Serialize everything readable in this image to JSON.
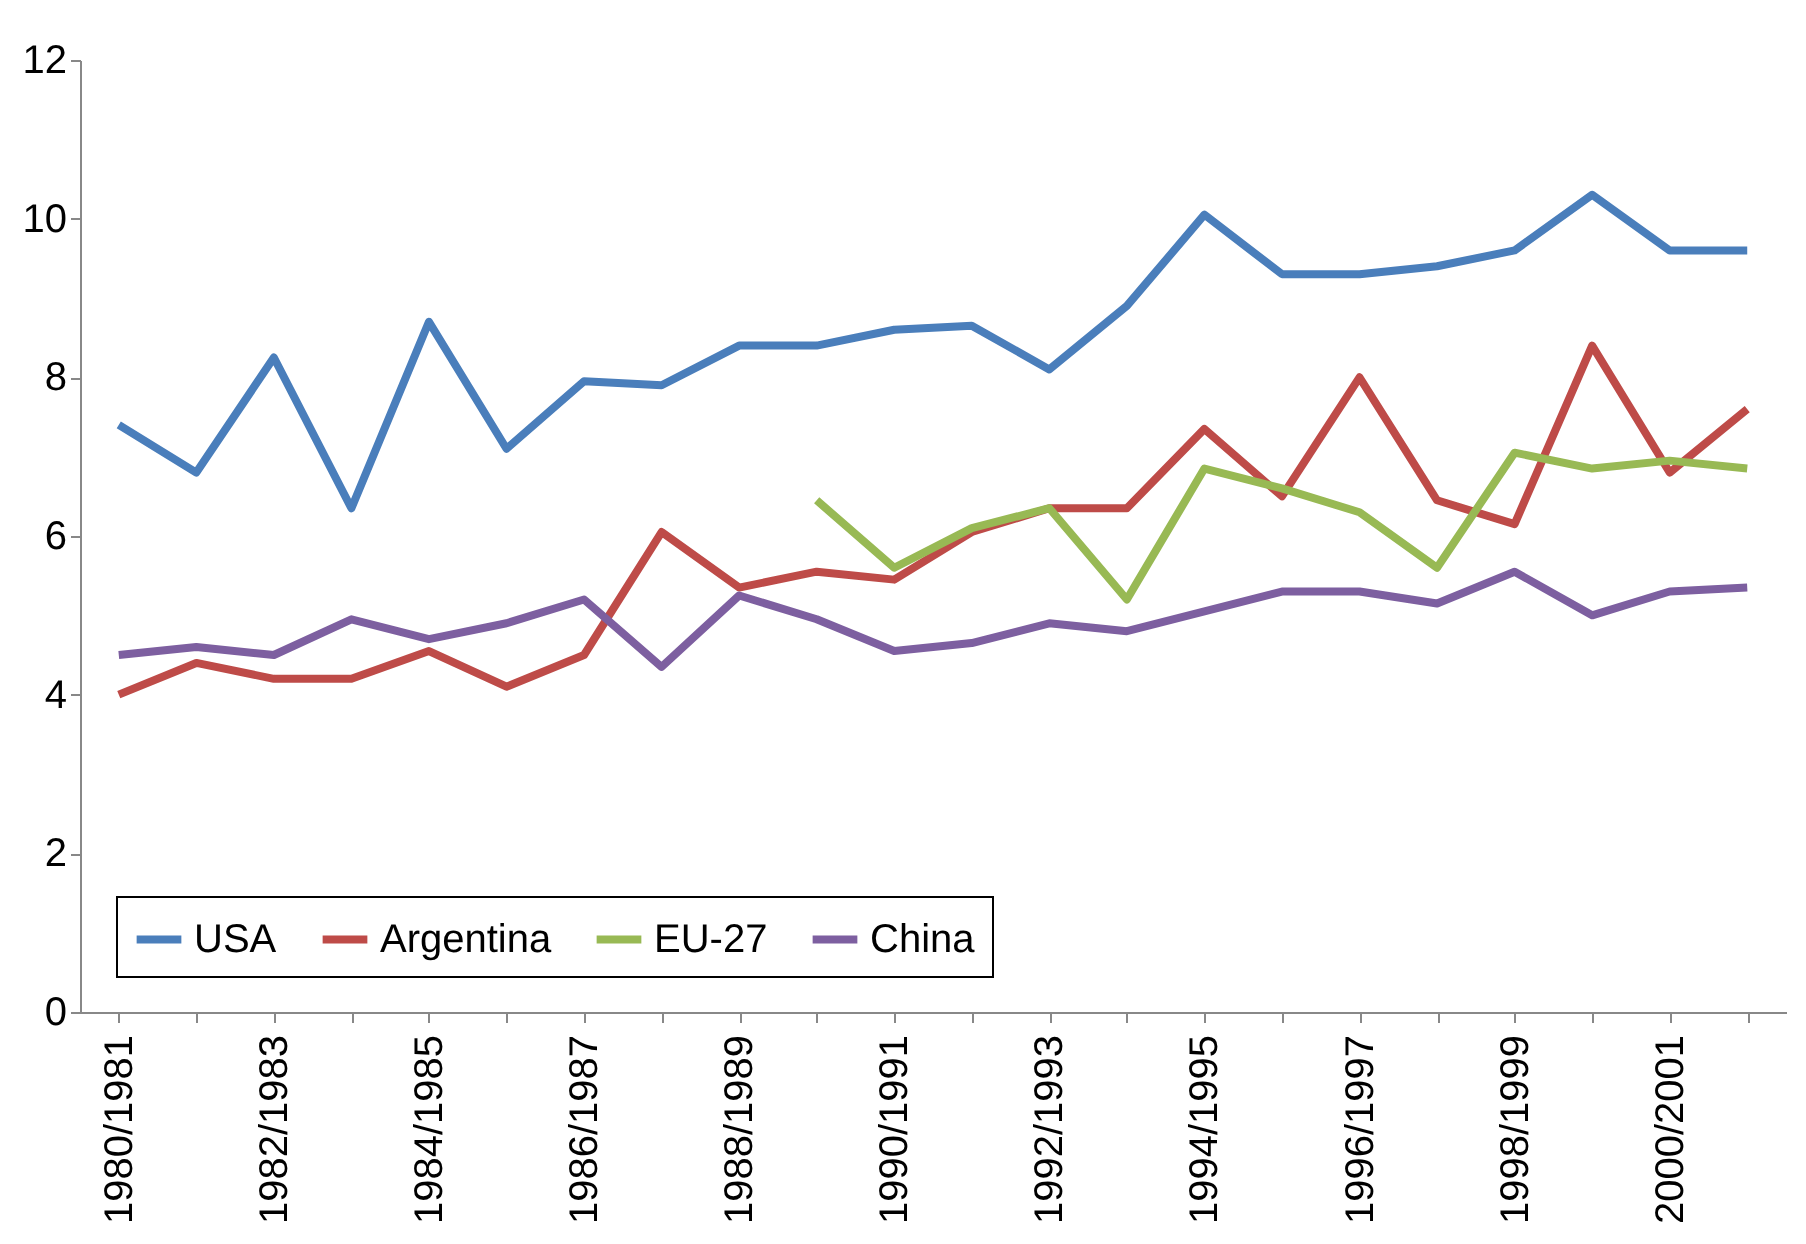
{
  "chart_data": {
    "type": "line",
    "categories": [
      "1980/1981",
      null,
      "1982/1983",
      null,
      "1984/1985",
      null,
      "1986/1987",
      null,
      "1988/1989",
      null,
      "1990/1991",
      null,
      "1992/1993",
      null,
      "1994/1995",
      null,
      "1996/1997",
      null,
      "1998/1999",
      null,
      "2000/2001",
      null
    ],
    "series": [
      {
        "name": "USA",
        "color": "#4a7ebb",
        "values": [
          7.4,
          6.8,
          8.25,
          6.35,
          8.7,
          7.1,
          7.95,
          7.9,
          8.4,
          8.4,
          8.6,
          8.65,
          8.1,
          8.9,
          10.05,
          9.3,
          9.3,
          9.4,
          9.6,
          10.3,
          9.6,
          9.6
        ]
      },
      {
        "name": "Argentina",
        "color": "#be4b48",
        "values": [
          4.0,
          4.4,
          4.2,
          4.2,
          4.55,
          4.1,
          4.5,
          6.05,
          5.35,
          5.55,
          5.45,
          6.05,
          6.35,
          6.35,
          7.35,
          6.5,
          8.0,
          6.45,
          6.15,
          8.4,
          6.8,
          7.6
        ]
      },
      {
        "name": "EU-27",
        "color": "#98b954",
        "values": [
          null,
          null,
          null,
          null,
          null,
          null,
          null,
          null,
          null,
          6.45,
          5.6,
          6.1,
          6.35,
          5.2,
          6.85,
          6.6,
          6.3,
          5.6,
          7.05,
          6.85,
          6.95,
          6.85
        ]
      },
      {
        "name": "China",
        "color": "#7d5fa0",
        "values": [
          4.5,
          4.6,
          4.5,
          4.95,
          4.7,
          4.9,
          5.2,
          4.35,
          5.25,
          4.95,
          4.55,
          4.65,
          4.9,
          4.8,
          5.05,
          5.3,
          5.3,
          5.15,
          5.55,
          5.0,
          5.3,
          5.35
        ]
      }
    ],
    "ylim": [
      0,
      12
    ],
    "yticks": [
      0,
      2,
      4,
      6,
      8,
      10,
      12
    ],
    "grid": false,
    "legend": "bottom",
    "marker": "none",
    "line_style": "solid"
  }
}
